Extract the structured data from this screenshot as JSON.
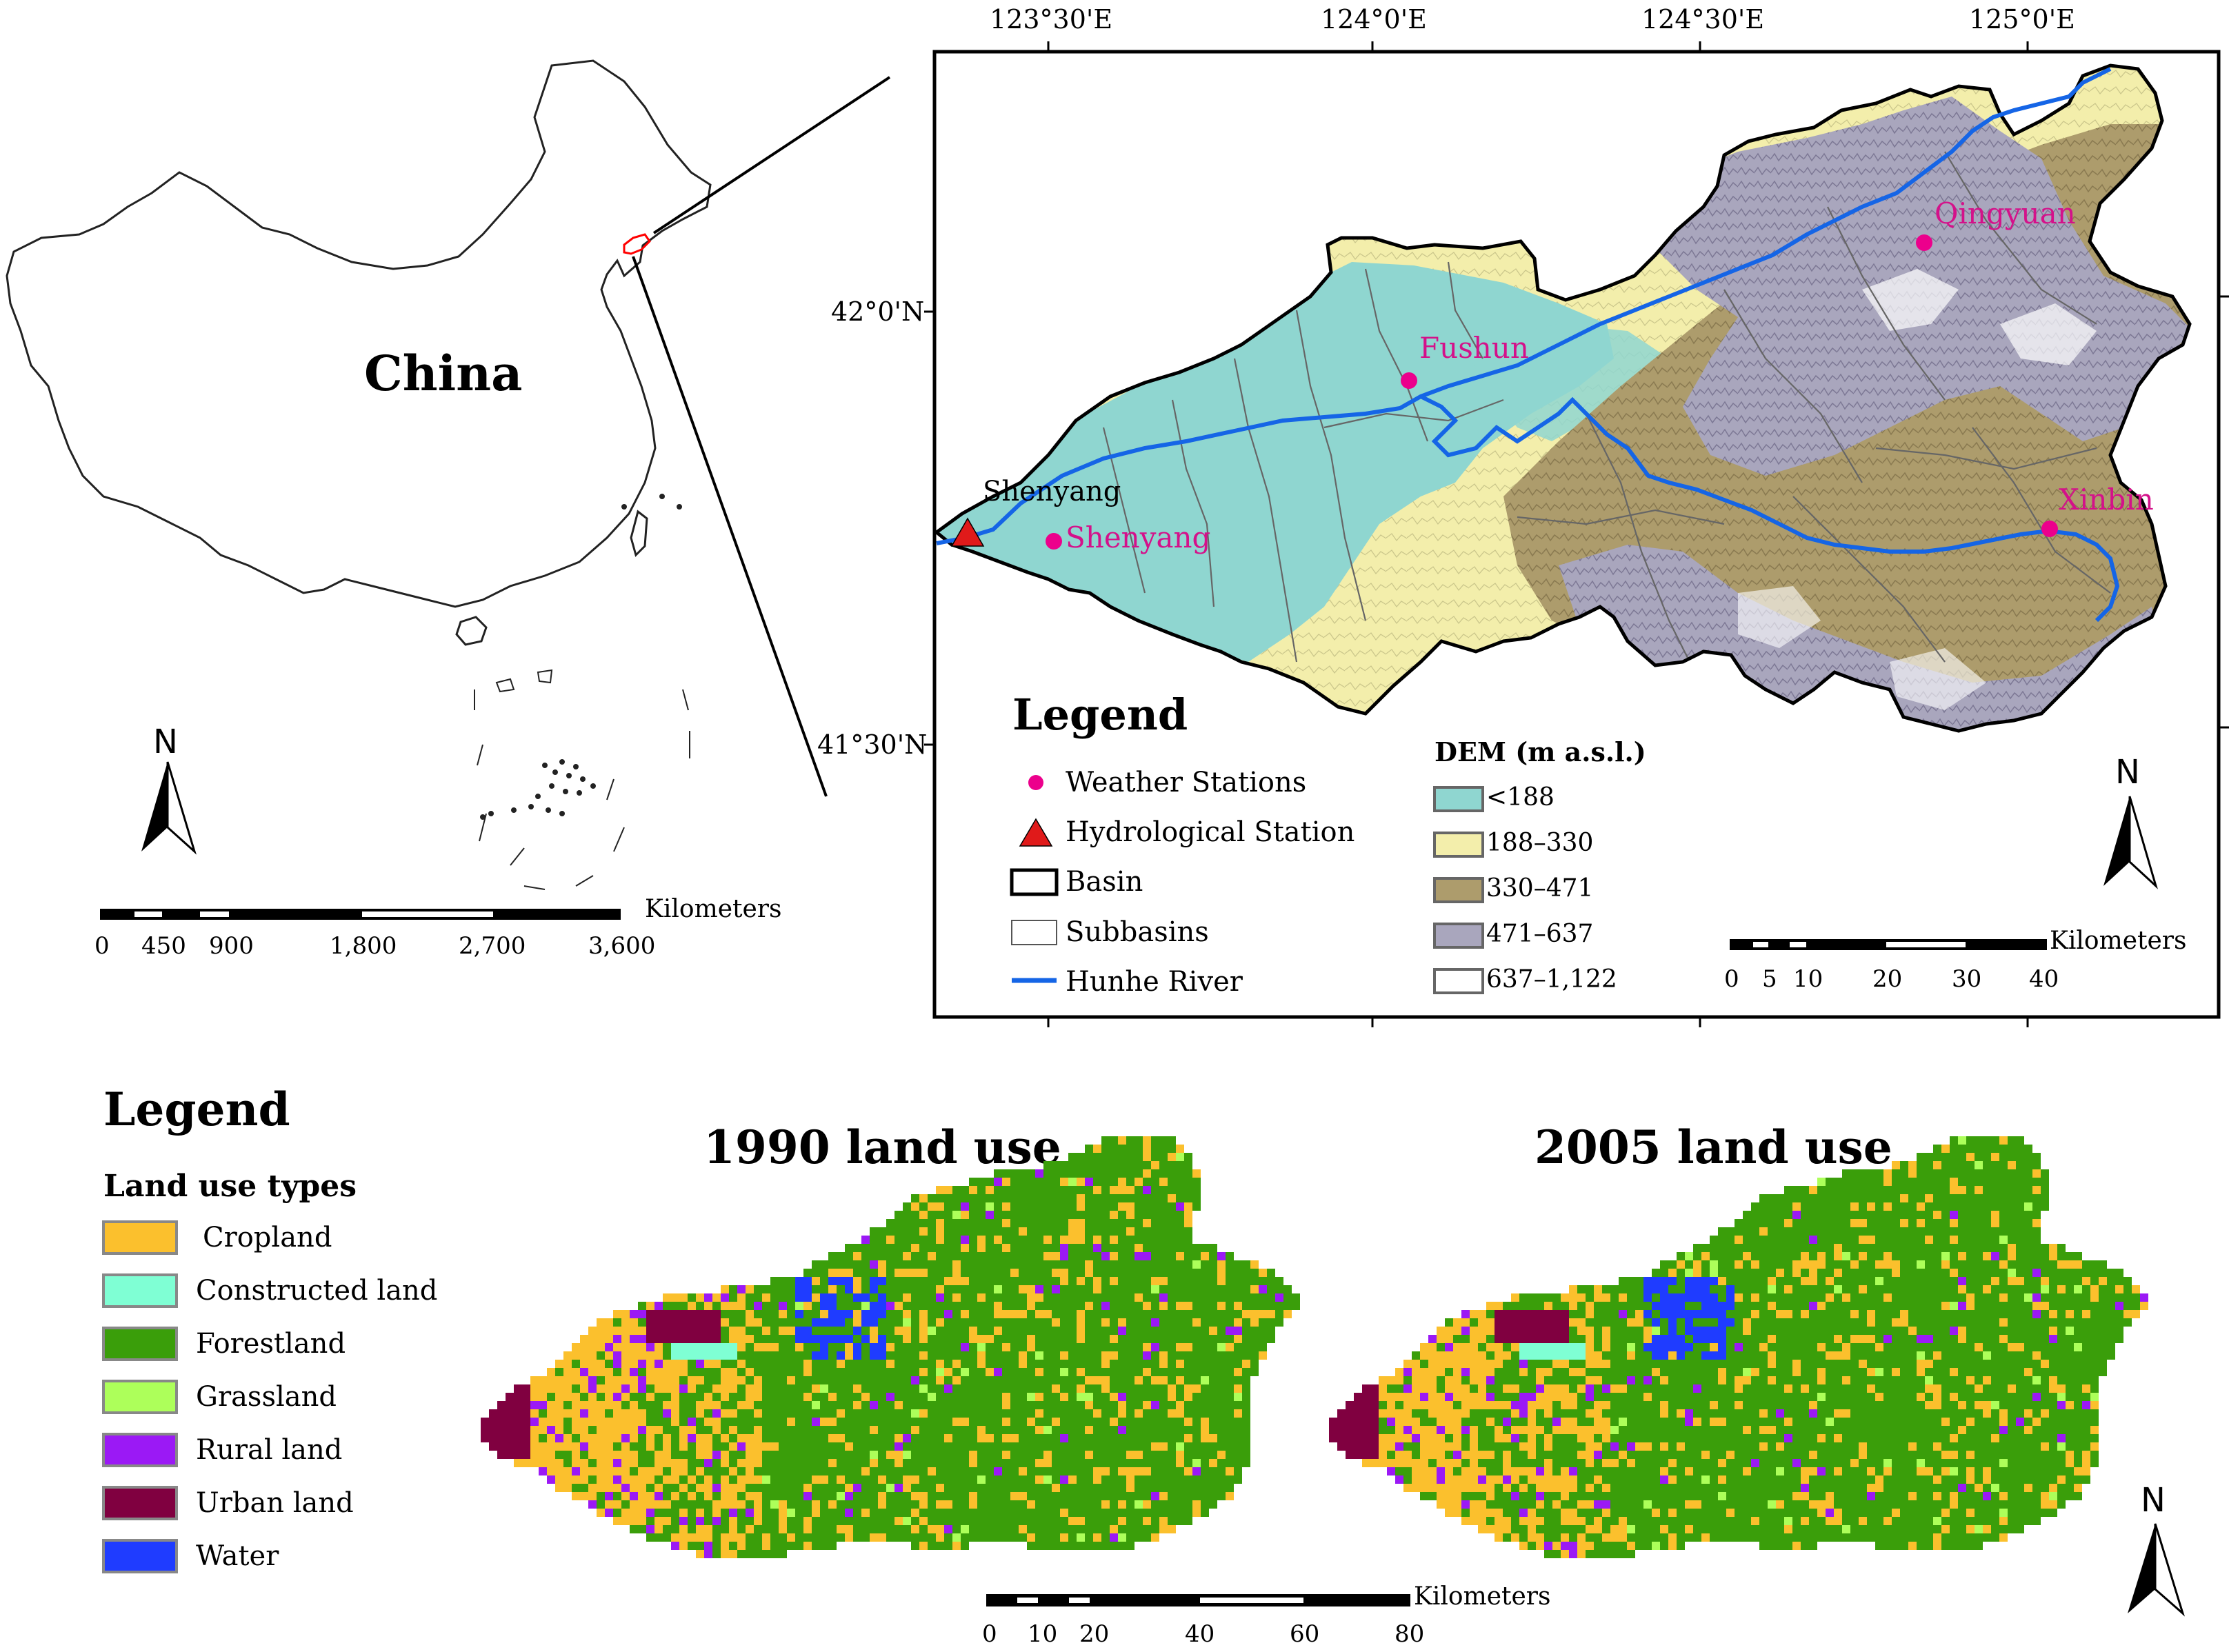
{
  "china_map": {
    "label": "China",
    "north": "N",
    "scale": {
      "unit": "Kilometers",
      "ticks": [
        "0",
        "450",
        "900",
        "1,800",
        "2,700",
        "3,600"
      ]
    }
  },
  "basin_map": {
    "lon_labels": [
      "123°30'E",
      "124°0'E",
      "124°30'E",
      "125°0'E"
    ],
    "lat_labels": [
      "42°0'N",
      "41°30'N"
    ],
    "stations": {
      "fushun": "Fushun",
      "qingyuan": "Qingyuan",
      "xinbin": "Xinbin",
      "shenyang_weather": "Shenyang",
      "shenyang_hydro": "Shenyang"
    },
    "legend": {
      "title": "Legend",
      "weather": "Weather Stations",
      "hydro": "Hydrological Station",
      "basin": "Basin",
      "subbasins": "Subbasins",
      "river": "Hunhe River",
      "dem_title": "DEM (m a.s.l.)",
      "dem_classes": [
        {
          "label": "<188",
          "color": "#8fd6d0"
        },
        {
          "label": "188–330",
          "color": "#f3eeab"
        },
        {
          "label": "330–471",
          "color": "#ad9c6c"
        },
        {
          "label": "471–637",
          "color": "#a9a6bd"
        },
        {
          "label": "637–1,122",
          "color": "#ffffff"
        }
      ]
    },
    "north": "N",
    "scale": {
      "unit": "Kilometers",
      "ticks": [
        "0",
        "5",
        "10",
        "20",
        "30",
        "40"
      ]
    }
  },
  "landuse": {
    "legend_title": "Legend",
    "types_title": "Land use types",
    "types": [
      {
        "label": "Cropland",
        "color": "#fbc02d"
      },
      {
        "label": "Constructed land",
        "color": "#7fffd4"
      },
      {
        "label": "Forestland",
        "color": "#3a9e0a"
      },
      {
        "label": "Grassland",
        "color": "#adff5a"
      },
      {
        "label": "Rural land",
        "color": "#9b19f5"
      },
      {
        "label": "Urban land",
        "color": "#800040"
      },
      {
        "label": "Water",
        "color": "#1f3cff"
      }
    ],
    "map1_title": "1990 land use",
    "map2_title": "2005 land use",
    "north": "N",
    "scale": {
      "unit": "Kilometers",
      "ticks": [
        "0",
        "10",
        "20",
        "40",
        "60",
        "80"
      ]
    }
  },
  "colors": {
    "river": "#1565e6",
    "station": "#ec008c",
    "station_text": "#d4118a",
    "hydro": "#e01a1a",
    "china_highlight": "#ff0000"
  }
}
